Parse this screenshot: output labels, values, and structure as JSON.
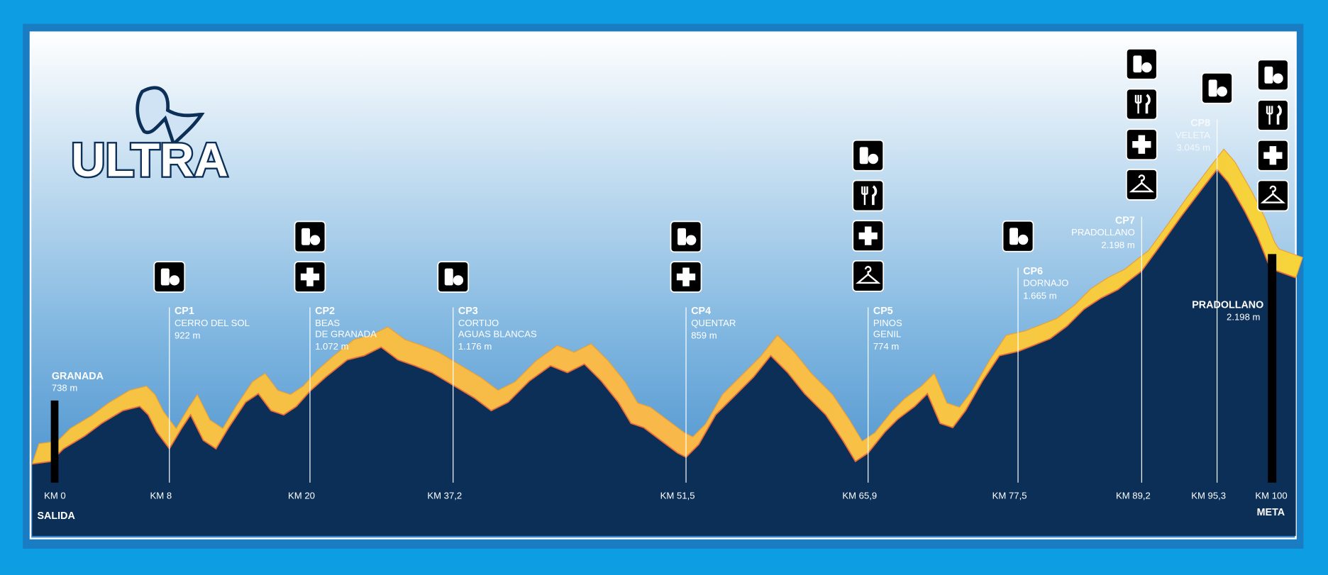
{
  "logo": "ULTRA",
  "start": {
    "name": "GRANADA",
    "altitude": "738 m",
    "km": "KM 0",
    "label": "SALIDA"
  },
  "checkpoints": [
    {
      "id": "CP1",
      "name": [
        "CERRO DEL SOL"
      ],
      "altitude": "922 m",
      "km": "KM 8"
    },
    {
      "id": "CP2",
      "name": [
        "BEAS",
        "DE GRANADA"
      ],
      "altitude": "1.072 m",
      "km": "KM 20"
    },
    {
      "id": "CP3",
      "name": [
        "CORTIJO",
        "AGUAS BLANCAS"
      ],
      "altitude": "1.176 m",
      "km": "KM 37,2"
    },
    {
      "id": "CP4",
      "name": [
        "QUENTAR"
      ],
      "altitude": "859 m",
      "km": "KM 51,5"
    },
    {
      "id": "CP5",
      "name": [
        "PINOS",
        "GENIL"
      ],
      "altitude": "774 m",
      "km": "KM 65,9"
    },
    {
      "id": "CP6",
      "name": [
        "DORNAJO"
      ],
      "altitude": "1.665 m",
      "km": "KM 77,5"
    },
    {
      "id": "CP7",
      "name": [
        "PRADOLLANO"
      ],
      "altitude": "2.198 m",
      "km": "KM 89,2"
    },
    {
      "id": "CP8",
      "name": [
        "VELETA"
      ],
      "altitude": "3.045 m",
      "km": "KM 95,3"
    }
  ],
  "finish": {
    "name": "PRADOLLANO",
    "altitude": "2.198 m",
    "km": "KM 100",
    "label": "META"
  }
}
